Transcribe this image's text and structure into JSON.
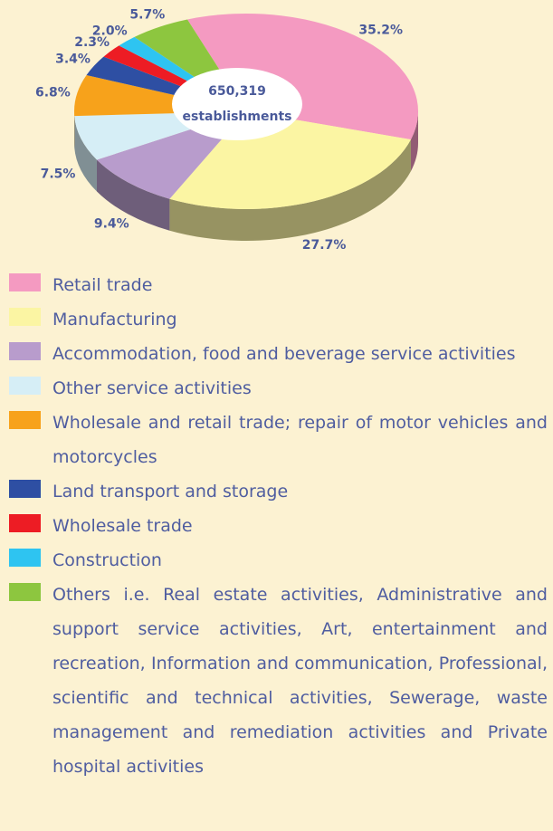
{
  "chart_data": {
    "type": "pie",
    "categories": [
      "Retail trade",
      "Manufacturing",
      "Accommodation, food and beverage service activities",
      "Other service activities",
      "Wholesale and retail trade; repair of motor vehicles and motorcycles",
      "Land transport and storage",
      "Wholesale trade",
      "Construction",
      "Others i.e. Real estate activities, Administrative and support service activities, Art, entertainment and recreation, Information and communication, Professional, scientific and technical activities, Sewerage, waste management and remediation activities and Private hospital activities"
    ],
    "values": [
      35.2,
      27.7,
      9.4,
      7.5,
      6.8,
      3.4,
      2.3,
      2.0,
      5.7
    ],
    "value_labels": [
      "35.2%",
      "27.7%",
      "9.4%",
      "7.5%",
      "6.8%",
      "3.4%",
      "2.3%",
      "2.0%",
      "5.7%"
    ],
    "colors": [
      "#f49ac1",
      "#fbf5a3",
      "#b89ccc",
      "#d6eef6",
      "#f7a21b",
      "#2e4fa3",
      "#ed1c24",
      "#2ec4f1",
      "#8dc63f"
    ],
    "center_label": [
      "650,319",
      "establishments"
    ]
  }
}
